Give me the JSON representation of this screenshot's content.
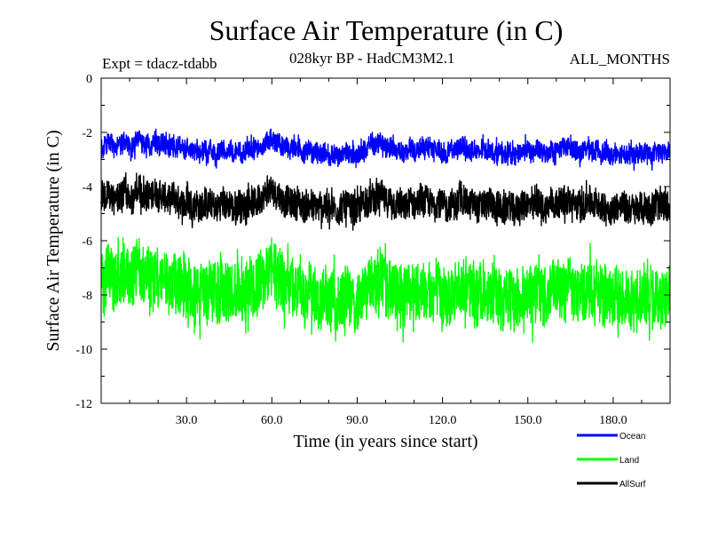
{
  "header": {
    "title": "Surface Air Temperature (in C)",
    "expt": "Expt = tdacz-tdabb",
    "subtitle": "028kyr BP - HadCM3M2.1",
    "months": "ALL_MONTHS"
  },
  "chart_data": {
    "type": "line",
    "title": "Surface Air Temperature (in C)",
    "xlabel": "Time (in years since start)",
    "ylabel": "Surface Air Temperature (in C)",
    "xlim": [
      0,
      200
    ],
    "ylim": [
      -12,
      0
    ],
    "x_ticks": [
      30,
      60,
      90,
      120,
      150,
      180
    ],
    "x_tick_labels": [
      "30.0",
      "60.0",
      "90.0",
      "120.0",
      "150.0",
      "180.0"
    ],
    "y_ticks": [
      0,
      -2,
      -4,
      -6,
      -8,
      -10,
      -12
    ],
    "y_tick_labels": [
      "0",
      "-2",
      "-4",
      "-6",
      "-8",
      "-10",
      "-12"
    ],
    "grid": false,
    "legend_position": "bottom-right",
    "samples_per_year": 12,
    "series": [
      {
        "name": "Ocean",
        "color": "#0000ff",
        "monthly_amplitude": 0.35,
        "annual_means": [
          -2.6,
          -2.5,
          -2.4,
          -2.4,
          -2.6,
          -2.5,
          -2.5,
          -2.4,
          -2.3,
          -2.5,
          -2.6,
          -2.5,
          -2.3,
          -2.2,
          -2.4,
          -2.5,
          -2.4,
          -2.5,
          -2.3,
          -2.4,
          -2.5,
          -2.4,
          -2.5,
          -2.6,
          -2.5,
          -2.4,
          -2.6,
          -2.5,
          -2.6,
          -2.7,
          -2.5,
          -2.6,
          -2.7,
          -2.6,
          -2.8,
          -2.7,
          -2.6,
          -2.8,
          -2.6,
          -2.7,
          -2.8,
          -2.7,
          -2.6,
          -2.7,
          -2.7,
          -2.6,
          -2.8,
          -2.7,
          -2.6,
          -2.8,
          -2.7,
          -2.6,
          -2.6,
          -2.7,
          -2.6,
          -2.5,
          -2.5,
          -2.4,
          -2.3,
          -2.2,
          -2.3,
          -2.4,
          -2.4,
          -2.5,
          -2.6,
          -2.5,
          -2.6,
          -2.6,
          -2.7,
          -2.6,
          -2.7,
          -2.8,
          -2.7,
          -2.6,
          -2.8,
          -2.7,
          -2.8,
          -2.8,
          -2.7,
          -2.8,
          -2.9,
          -2.8,
          -2.8,
          -2.9,
          -2.8,
          -2.7,
          -2.7,
          -2.8,
          -2.8,
          -2.9,
          -2.8,
          -2.7,
          -2.6,
          -2.6,
          -2.5,
          -2.4,
          -2.5,
          -2.4,
          -2.3,
          -2.5,
          -2.6,
          -2.5,
          -2.6,
          -2.7,
          -2.6,
          -2.7,
          -2.8,
          -2.7,
          -2.6,
          -2.6,
          -2.7,
          -2.6,
          -2.5,
          -2.6,
          -2.5,
          -2.6,
          -2.7,
          -2.6,
          -2.6,
          -2.7,
          -2.7,
          -2.8,
          -2.7,
          -2.6,
          -2.7,
          -2.6,
          -2.5,
          -2.5,
          -2.6,
          -2.7,
          -2.6,
          -2.7,
          -2.8,
          -2.7,
          -2.6,
          -2.7,
          -2.6,
          -2.7,
          -2.8,
          -2.7,
          -2.8,
          -2.9,
          -2.8,
          -2.7,
          -2.8,
          -2.9,
          -2.8,
          -2.7,
          -2.7,
          -2.6,
          -2.7,
          -2.8,
          -2.7,
          -2.6,
          -2.7,
          -2.8,
          -2.8,
          -2.7,
          -2.6,
          -2.7,
          -2.6,
          -2.6,
          -2.5,
          -2.6,
          -2.5,
          -2.6,
          -2.6,
          -2.7,
          -2.8,
          -2.7,
          -2.6,
          -2.5,
          -2.6,
          -2.7,
          -2.6,
          -2.7,
          -2.8,
          -2.7,
          -2.8,
          -2.9,
          -2.8,
          -2.7,
          -2.8,
          -2.7,
          -2.8,
          -2.9,
          -2.8,
          -2.9,
          -2.8,
          -2.7,
          -2.8,
          -2.7,
          -2.8,
          -2.9,
          -2.8,
          -2.7,
          -2.8,
          -2.7,
          -2.8,
          -2.7
        ]
      },
      {
        "name": "Land",
        "color": "#00ff00",
        "monthly_amplitude": 1.1,
        "annual_means": [
          -7.6,
          -7.4,
          -7.2,
          -7.3,
          -7.6,
          -7.5,
          -7.4,
          -7.2,
          -7.0,
          -7.3,
          -7.5,
          -7.3,
          -7.0,
          -6.9,
          -7.2,
          -7.4,
          -7.3,
          -7.5,
          -7.2,
          -7.1,
          -7.4,
          -7.3,
          -7.5,
          -7.7,
          -7.6,
          -7.4,
          -7.7,
          -7.6,
          -7.8,
          -7.9,
          -7.6,
          -7.7,
          -7.9,
          -7.8,
          -8.1,
          -7.9,
          -7.7,
          -8.0,
          -7.8,
          -7.9,
          -8.1,
          -7.9,
          -7.7,
          -7.9,
          -7.9,
          -7.7,
          -8.0,
          -7.9,
          -7.8,
          -8.1,
          -7.9,
          -7.7,
          -7.6,
          -7.8,
          -7.7,
          -7.5,
          -7.4,
          -7.3,
          -7.1,
          -6.9,
          -7.0,
          -7.2,
          -7.3,
          -7.5,
          -7.7,
          -7.6,
          -7.8,
          -7.7,
          -7.9,
          -7.8,
          -8.0,
          -8.2,
          -8.0,
          -7.8,
          -8.1,
          -8.0,
          -8.2,
          -8.2,
          -8.0,
          -8.2,
          -8.3,
          -8.1,
          -8.2,
          -8.4,
          -8.1,
          -8.0,
          -8.0,
          -8.2,
          -8.2,
          -8.3,
          -8.1,
          -8.0,
          -7.8,
          -7.8,
          -7.6,
          -7.5,
          -7.6,
          -7.4,
          -7.3,
          -7.6,
          -7.8,
          -7.7,
          -7.8,
          -8.0,
          -7.8,
          -7.9,
          -8.1,
          -8.0,
          -7.8,
          -7.8,
          -7.9,
          -7.8,
          -7.7,
          -7.8,
          -7.6,
          -7.8,
          -7.9,
          -7.8,
          -7.8,
          -8.0,
          -7.9,
          -8.1,
          -8.0,
          -7.8,
          -7.9,
          -7.8,
          -7.6,
          -7.7,
          -7.8,
          -7.9,
          -7.8,
          -8.0,
          -8.1,
          -7.9,
          -7.8,
          -8.0,
          -7.8,
          -8.0,
          -8.1,
          -8.0,
          -8.2,
          -8.3,
          -8.1,
          -8.0,
          -8.2,
          -8.3,
          -8.1,
          -8.0,
          -8.0,
          -7.8,
          -7.9,
          -8.1,
          -8.0,
          -7.8,
          -7.9,
          -8.1,
          -8.1,
          -8.0,
          -7.8,
          -7.9,
          -7.8,
          -7.8,
          -7.7,
          -7.8,
          -7.6,
          -7.8,
          -7.8,
          -7.9,
          -8.1,
          -8.0,
          -7.8,
          -7.7,
          -7.8,
          -8.0,
          -7.8,
          -8.0,
          -8.1,
          -8.0,
          -8.2,
          -8.3,
          -8.1,
          -8.0,
          -8.2,
          -8.0,
          -8.1,
          -8.3,
          -8.2,
          -8.3,
          -8.1,
          -8.0,
          -8.2,
          -8.0,
          -8.2,
          -8.3,
          -8.1,
          -8.0,
          -8.2,
          -8.0,
          -8.1,
          -8.0
        ]
      },
      {
        "name": "AllSurf",
        "color": "#000000",
        "monthly_amplitude": 0.55,
        "annual_means": [
          -4.5,
          -4.4,
          -4.3,
          -4.3,
          -4.5,
          -4.4,
          -4.4,
          -4.3,
          -4.2,
          -4.4,
          -4.5,
          -4.4,
          -4.2,
          -4.1,
          -4.3,
          -4.4,
          -4.3,
          -4.4,
          -4.2,
          -4.2,
          -4.4,
          -4.3,
          -4.4,
          -4.5,
          -4.5,
          -4.3,
          -4.5,
          -4.5,
          -4.6,
          -4.7,
          -4.5,
          -4.6,
          -4.7,
          -4.6,
          -4.8,
          -4.7,
          -4.6,
          -4.7,
          -4.6,
          -4.7,
          -4.8,
          -4.7,
          -4.6,
          -4.7,
          -4.7,
          -4.6,
          -4.8,
          -4.7,
          -4.6,
          -4.8,
          -4.7,
          -4.6,
          -4.5,
          -4.6,
          -4.6,
          -4.5,
          -4.4,
          -4.3,
          -4.2,
          -4.1,
          -4.2,
          -4.3,
          -4.3,
          -4.5,
          -4.6,
          -4.5,
          -4.6,
          -4.6,
          -4.7,
          -4.6,
          -4.7,
          -4.8,
          -4.7,
          -4.6,
          -4.8,
          -4.7,
          -4.8,
          -4.8,
          -4.7,
          -4.8,
          -4.9,
          -4.8,
          -4.8,
          -4.9,
          -4.8,
          -4.7,
          -4.7,
          -4.8,
          -4.8,
          -4.9,
          -4.8,
          -4.7,
          -4.6,
          -4.6,
          -4.5,
          -4.4,
          -4.5,
          -4.4,
          -4.3,
          -4.5,
          -4.6,
          -4.5,
          -4.6,
          -4.7,
          -4.6,
          -4.7,
          -4.8,
          -4.7,
          -4.6,
          -4.6,
          -4.7,
          -4.6,
          -4.5,
          -4.6,
          -4.5,
          -4.6,
          -4.7,
          -4.6,
          -4.6,
          -4.7,
          -4.7,
          -4.8,
          -4.7,
          -4.6,
          -4.7,
          -4.6,
          -4.5,
          -4.5,
          -4.6,
          -4.7,
          -4.6,
          -4.7,
          -4.8,
          -4.7,
          -4.6,
          -4.7,
          -4.6,
          -4.7,
          -4.8,
          -4.7,
          -4.8,
          -4.9,
          -4.8,
          -4.7,
          -4.8,
          -4.9,
          -4.8,
          -4.7,
          -4.7,
          -4.6,
          -4.7,
          -4.8,
          -4.7,
          -4.6,
          -4.7,
          -4.8,
          -4.8,
          -4.7,
          -4.6,
          -4.7,
          -4.6,
          -4.6,
          -4.5,
          -4.6,
          -4.5,
          -4.6,
          -4.6,
          -4.7,
          -4.8,
          -4.7,
          -4.6,
          -4.5,
          -4.6,
          -4.7,
          -4.6,
          -4.7,
          -4.8,
          -4.7,
          -4.8,
          -4.9,
          -4.8,
          -4.7,
          -4.8,
          -4.7,
          -4.8,
          -4.9,
          -4.8,
          -4.9,
          -4.8,
          -4.7,
          -4.8,
          -4.7,
          -4.8,
          -4.9,
          -4.8,
          -4.7,
          -4.8,
          -4.7,
          -4.8,
          -4.7
        ]
      }
    ]
  }
}
